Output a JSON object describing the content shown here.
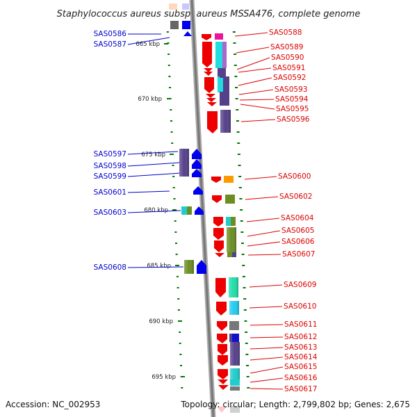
{
  "title": "Staphylococcus aureus subsp. aureus MSSA476, complete genome",
  "accession_text": "Accession: NC_002953",
  "topology_text": "Topology: circular; Length: 2,799,802 bp; Genes: 2,675",
  "colors": {
    "left_label": "#0000cc",
    "right_label": "#dd0000",
    "reverse_strand": "#0000ee",
    "forward_strand": "#ee0000",
    "tick": "#007700",
    "backbone": "#888888"
  },
  "scale_ticks": [
    {
      "label": "665 kbp",
      "kbp": 665
    },
    {
      "label": "670 kbp",
      "kbp": 670
    },
    {
      "label": "675 kbp",
      "kbp": 675
    },
    {
      "label": "680 kbp",
      "kbp": 680
    },
    {
      "label": "685 kbp",
      "kbp": 685
    },
    {
      "label": "690 kbp",
      "kbp": 690
    },
    {
      "label": "695 kbp",
      "kbp": 695
    }
  ],
  "left_genes": [
    {
      "name": "SAS0586",
      "cog": "#9999ff"
    },
    {
      "name": "SAS0587",
      "cog": "#9999ff"
    },
    {
      "name": "SAS0597",
      "cog": "#55408a"
    },
    {
      "name": "SAS0598",
      "cog": "#55408a"
    },
    {
      "name": "SAS0599",
      "cog": "#55408a"
    },
    {
      "name": "SAS0601",
      "cog": "#0000ee"
    },
    {
      "name": "SAS0603",
      "cog": "#22cccc"
    },
    {
      "name": "SAS0608",
      "cog": "#6b8e23"
    }
  ],
  "right_genes": [
    {
      "name": "SAS0588",
      "cog": "#ee1199"
    },
    {
      "name": "SAS0589",
      "cog": "#22dddd"
    },
    {
      "name": "SAS0590",
      "cog": "#55408a"
    },
    {
      "name": "SAS0591",
      "cog": "#55408a"
    },
    {
      "name": "SAS0592",
      "cog": "#55408a"
    },
    {
      "name": "SAS0593",
      "cog": "#22dddd"
    },
    {
      "name": "SAS0594",
      "cog": "#55408a"
    },
    {
      "name": "SAS0595",
      "cog": "#55408a"
    },
    {
      "name": "SAS0596",
      "cog": "#55408a"
    },
    {
      "name": "SAS0600",
      "cog": "#ff9900"
    },
    {
      "name": "SAS0602",
      "cog": "#6b8e23"
    },
    {
      "name": "SAS0604",
      "cog": "#22cccc"
    },
    {
      "name": "SAS0605",
      "cog": "#6b8e23"
    },
    {
      "name": "SAS0606",
      "cog": "#6b8e23"
    },
    {
      "name": "SAS0607",
      "cog": "#6b8e23"
    },
    {
      "name": "SAS0609",
      "cog": "#22ddaa"
    },
    {
      "name": "SAS0610",
      "cog": "#22ccee"
    },
    {
      "name": "SAS0611",
      "cog": "#777777"
    },
    {
      "name": "SAS0612",
      "cog": "#1111cc"
    },
    {
      "name": "SAS0613",
      "cog": "#55408a"
    },
    {
      "name": "SAS0614",
      "cog": "#55408a"
    },
    {
      "name": "SAS0615",
      "cog": "#22cccc"
    },
    {
      "name": "SAS0616",
      "cog": "#22cccc"
    },
    {
      "name": "SAS0617",
      "cog": "#777777"
    }
  ]
}
